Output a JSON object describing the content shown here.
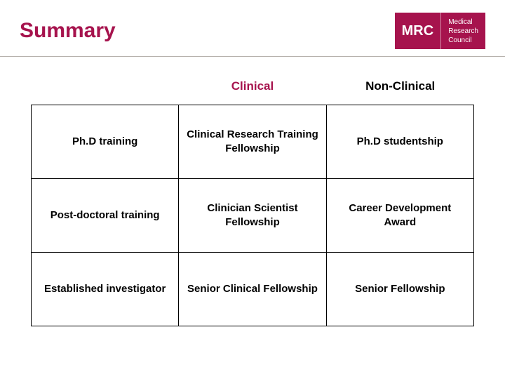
{
  "header": {
    "title": "Summary",
    "logo_abbr": "MRC",
    "logo_line1": "Medical",
    "logo_line2": "Research",
    "logo_line3": "Council"
  },
  "colors": {
    "brand": "#a6134d",
    "text": "#000000",
    "divider": "#b7b2ad",
    "background": "#ffffff"
  },
  "table": {
    "type": "table",
    "column_headers": [
      "Clinical",
      "Non-Clinical"
    ],
    "header_colors": [
      "#a6134d",
      "#000000"
    ],
    "row_headers": [
      "Ph.D training",
      "Post-doctoral training",
      "Established investigator"
    ],
    "rows": [
      [
        "Clinical Research Training Fellowship",
        "Ph.D studentship"
      ],
      [
        "Clinician Scientist Fellowship",
        "Career Development Award"
      ],
      [
        "Senior Clinical Fellowship",
        "Senior Fellowship"
      ]
    ],
    "border_color": "#000000",
    "font_weight": "bold",
    "cell_fontsize": 15,
    "header_fontsize": 17
  }
}
